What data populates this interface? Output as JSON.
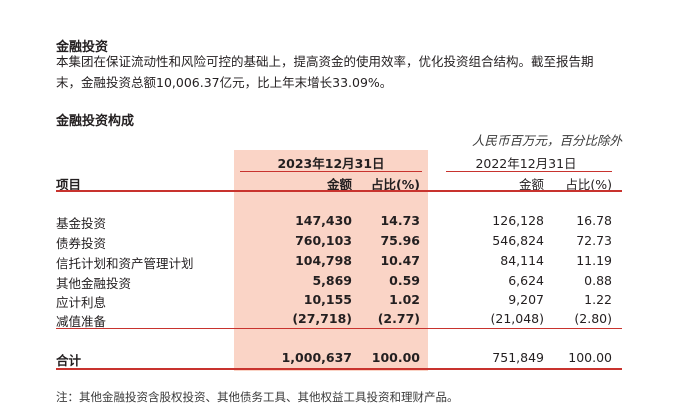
{
  "section1": {
    "title": "金融投资",
    "para_line1": "本集团在保证流动性和风险可控的基础上，提高资金的使用效率，优化投资组合结构。截至报告期",
    "para_line2": "末，金融投资总额10,006.37亿元，比上年末增长33.09%。"
  },
  "section2": {
    "title": "金融投资构成",
    "unit_note": "人民币百万元，百分比除外"
  },
  "table": {
    "period_current": "2023年12月31日",
    "period_prior": "2022年12月31日",
    "col_item": "项目",
    "col_amount": "金额",
    "col_pct": "占比(%)",
    "rows": [
      {
        "label": "基金投资",
        "amt_2023": "147,430",
        "pct_2023": "14.73",
        "amt_2022": "126,128",
        "pct_2022": "16.78"
      },
      {
        "label": "债券投资",
        "amt_2023": "760,103",
        "pct_2023": "75.96",
        "amt_2022": "546,824",
        "pct_2022": "72.73"
      },
      {
        "label": "信托计划和资产管理计划",
        "amt_2023": "104,798",
        "pct_2023": "10.47",
        "amt_2022": "84,114",
        "pct_2022": "11.19"
      },
      {
        "label": "其他金融投资",
        "amt_2023": "5,869",
        "pct_2023": "0.59",
        "amt_2022": "6,624",
        "pct_2022": "0.88"
      },
      {
        "label": "应计利息",
        "amt_2023": "10,155",
        "pct_2023": "1.02",
        "amt_2022": "9,207",
        "pct_2022": "1.22"
      },
      {
        "label": "减值准备",
        "amt_2023": "(27,718)",
        "pct_2023": "(2.77)",
        "amt_2022": "(21,048)",
        "pct_2022": "(2.80)"
      }
    ],
    "total": {
      "label": "合计",
      "amt_2023": "1,000,637",
      "pct_2023": "100.00",
      "amt_2022": "751,849",
      "pct_2022": "100.00"
    }
  },
  "footnote": "注：其他金融投资含股权投资、其他债务工具、其他权益工具投资和理财产品。",
  "colors": {
    "highlight": "#fad4c6",
    "rule": "#c8332e",
    "text": "#231f20"
  }
}
